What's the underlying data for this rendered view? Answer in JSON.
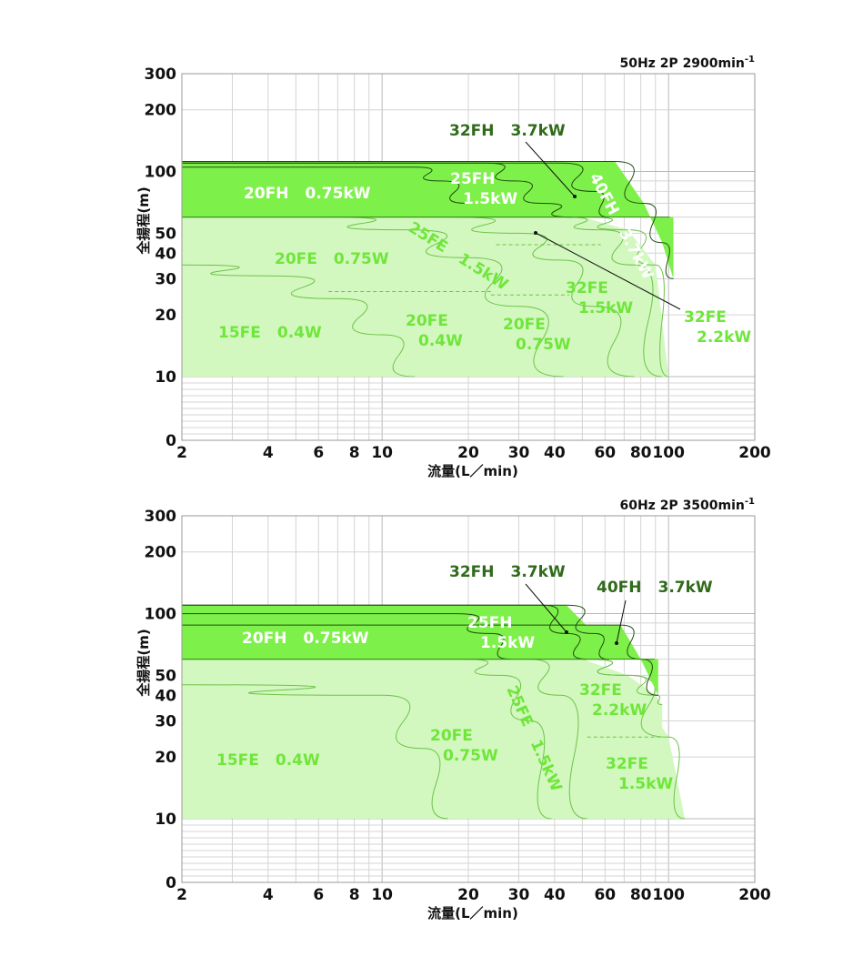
{
  "colors": {
    "fh_fill": "#7ef04a",
    "fe_fill": "#d2f8bf",
    "fh_stroke": "#2f8a16",
    "fe_stroke": "#6fc24a",
    "grid": "#d4d4d4",
    "label_white": "#ffffff",
    "label_green": "#6fe63a",
    "label_dark": "#2f6b1a"
  },
  "chart_data": [
    {
      "type": "area",
      "condition": "50Hz 2P 2900min",
      "condition_sup": "-1",
      "xlabel": "流量(L／min)",
      "ylabel": "全揚程(m)",
      "x_scale": "log",
      "y_scale": "log",
      "xlim": [
        2,
        200
      ],
      "ylim": [
        0,
        300
      ],
      "x_ticks": [
        "2",
        "4",
        "6",
        "8",
        "10",
        "20",
        "30",
        "40",
        "60",
        "80",
        "100",
        "200"
      ],
      "y_ticks": [
        "0",
        "10",
        "20",
        "30",
        "40",
        "50",
        "100",
        "200",
        "300"
      ],
      "grid": true,
      "series": [
        {
          "name": "15FE 0.4W",
          "group": "FE",
          "points": [
            [
              2,
              35
            ],
            [
              4,
              31
            ],
            [
              7,
              24
            ],
            [
              10,
              16
            ],
            [
              13,
              10
            ]
          ]
        },
        {
          "name": "20FE 0.75W",
          "group": "FE",
          "points": [
            [
              2,
              60
            ],
            [
              6,
              60
            ],
            [
              12,
              52
            ],
            [
              20,
              38
            ],
            [
              30,
              22
            ],
            [
              43,
              10
            ]
          ]
        },
        {
          "name": "25FE 1.5kW",
          "group": "FE",
          "points": [
            [
              2,
              60
            ],
            [
              17,
              60
            ],
            [
              30,
              50
            ],
            [
              42,
              37
            ],
            [
              55,
              22
            ],
            [
              76,
              10
            ]
          ]
        },
        {
          "name": "32FE 1.5kW",
          "group": "FE",
          "points": [
            [
              2,
              60
            ],
            [
              42,
              60
            ],
            [
              58,
              52
            ],
            [
              76,
              35
            ],
            [
              95,
              10
            ]
          ]
        },
        {
          "name": "32FE 2.2kW",
          "group": "FE",
          "points": [
            [
              2,
              60
            ],
            [
              50,
              60
            ],
            [
              72,
              52
            ],
            [
              90,
              35
            ],
            [
              100,
              10
            ]
          ]
        },
        {
          "name": "20FH 0.75kW",
          "group": "FH",
          "points": [
            [
              2,
              105
            ],
            [
              13,
              105
            ],
            [
              16,
              90
            ],
            [
              20,
              70
            ]
          ]
        },
        {
          "name": "25FH 1.5kW",
          "group": "FH",
          "points": [
            [
              2,
              110
            ],
            [
              23,
              110
            ],
            [
              29,
              90
            ],
            [
              36,
              70
            ],
            [
              46,
              60
            ]
          ]
        },
        {
          "name": "32FH 3.7kW",
          "group": "FH",
          "points": [
            [
              2,
              110
            ],
            [
              42,
              110
            ],
            [
              55,
              80
            ],
            [
              62,
              60
            ]
          ]
        },
        {
          "name": "40FH 3.7kW",
          "group": "FH",
          "points": [
            [
              2,
              112
            ],
            [
              65,
              112
            ],
            [
              82,
              70
            ],
            [
              95,
              45
            ],
            [
              104,
              30
            ]
          ]
        }
      ],
      "labels": [
        {
          "key": "fh20",
          "line1": "20FH",
          "line2": "0.75kW",
          "tone": "white"
        },
        {
          "key": "fh25",
          "line1": "25FH",
          "line2": "1.5kW",
          "tone": "white"
        },
        {
          "key": "fh32",
          "line1": "32FH",
          "line2": "3.7kW",
          "tone": "dark"
        },
        {
          "key": "fh40",
          "line1": "40FH",
          "line2": "3.7kW",
          "tone": "white"
        },
        {
          "key": "fe15",
          "line1": "15FE",
          "line2": "0.4W",
          "tone": "green"
        },
        {
          "key": "fe20a",
          "line1": "20FE",
          "line2": "0.75W",
          "tone": "green"
        },
        {
          "key": "fe20b",
          "line1": "20FE",
          "line2": "0.4W",
          "tone": "green"
        },
        {
          "key": "fe20c",
          "line1": "20FE",
          "line2": "0.75W",
          "tone": "green"
        },
        {
          "key": "fe25",
          "line1": "25FE",
          "line2": "1.5kW",
          "tone": "green"
        },
        {
          "key": "fe32a",
          "line1": "32FE",
          "line2": "1.5kW",
          "tone": "green"
        },
        {
          "key": "fe32b",
          "line1": "32FE",
          "line2": "2.2kW",
          "tone": "green"
        }
      ]
    },
    {
      "type": "area",
      "condition": "60Hz 2P 3500min",
      "condition_sup": "-1",
      "xlabel": "流量(L／min)",
      "ylabel": "全揚程(m)",
      "x_scale": "log",
      "y_scale": "log",
      "xlim": [
        2,
        200
      ],
      "ylim": [
        0,
        300
      ],
      "x_ticks": [
        "2",
        "4",
        "6",
        "8",
        "10",
        "20",
        "30",
        "40",
        "60",
        "80",
        "100",
        "200"
      ],
      "y_ticks": [
        "0",
        "10",
        "20",
        "30",
        "40",
        "50",
        "100",
        "200",
        "300"
      ],
      "grid": true,
      "series": [
        {
          "name": "15FE 0.4W",
          "group": "FE",
          "points": [
            [
              2,
              45
            ],
            [
              10,
              40
            ],
            [
              14,
              22
            ],
            [
              17,
              10
            ]
          ]
        },
        {
          "name": "20FE 0.75W",
          "group": "FE",
          "points": [
            [
              2,
              60
            ],
            [
              19,
              60
            ],
            [
              26,
              50
            ],
            [
              33,
              30
            ],
            [
              39,
              10
            ]
          ]
        },
        {
          "name": "25FE 1.5kW",
          "group": "FE",
          "points": [
            [
              2,
              60
            ],
            [
              32,
              60
            ],
            [
              42,
              40
            ],
            [
              52,
              10
            ]
          ]
        },
        {
          "name": "32FE 1.5kW",
          "group": "FE",
          "points": [
            [
              2,
              60
            ],
            [
              50,
              60
            ],
            [
              72,
              50
            ],
            [
              100,
              25
            ],
            [
              114,
              10
            ]
          ]
        },
        {
          "name": "32FE 2.2kW",
          "group": "FE",
          "points": [
            [
              2,
              60
            ],
            [
              50,
              60
            ],
            [
              72,
              50
            ],
            [
              90,
              40
            ],
            [
              95,
              36
            ]
          ]
        },
        {
          "name": "20FH 0.75kW",
          "group": "FH",
          "points": [
            [
              2,
              100
            ],
            [
              18,
              100
            ],
            [
              24,
              80
            ],
            [
              28,
              60
            ]
          ]
        },
        {
          "name": "25FH 1.5kW",
          "group": "FH",
          "points": [
            [
              2,
              110
            ],
            [
              36,
              110
            ],
            [
              44,
              80
            ],
            [
              52,
              60
            ]
          ]
        },
        {
          "name": "32FH 3.7kW",
          "group": "FH",
          "points": [
            [
              2,
              110
            ],
            [
              44,
              110
            ],
            [
              55,
              80
            ],
            [
              62,
              60
            ]
          ]
        },
        {
          "name": "40FH 3.7kW",
          "group": "FH",
          "points": [
            [
              2,
              88
            ],
            [
              68,
              88
            ],
            [
              80,
              60
            ],
            [
              92,
              40
            ]
          ]
        }
      ],
      "labels": [
        {
          "key": "fh20",
          "line1": "20FH",
          "line2": "0.75kW",
          "tone": "white"
        },
        {
          "key": "fh25",
          "line1": "25FH",
          "line2": "1.5kW",
          "tone": "white"
        },
        {
          "key": "fh32",
          "line1": "32FH",
          "line2": "3.7kW",
          "tone": "dark"
        },
        {
          "key": "fh40",
          "line1": "40FH",
          "line2": "3.7kW",
          "tone": "dark"
        },
        {
          "key": "fe15",
          "line1": "15FE",
          "line2": "0.4W",
          "tone": "green"
        },
        {
          "key": "fe20",
          "line1": "20FE",
          "line2": "0.75W",
          "tone": "green"
        },
        {
          "key": "fe25",
          "line1": "25FE",
          "line2": "1.5kW",
          "tone": "green"
        },
        {
          "key": "fe32a",
          "line1": "32FE",
          "line2": "2.2kW",
          "tone": "green"
        },
        {
          "key": "fe32b",
          "line1": "32FE",
          "line2": "1.5kW",
          "tone": "green"
        }
      ]
    }
  ]
}
